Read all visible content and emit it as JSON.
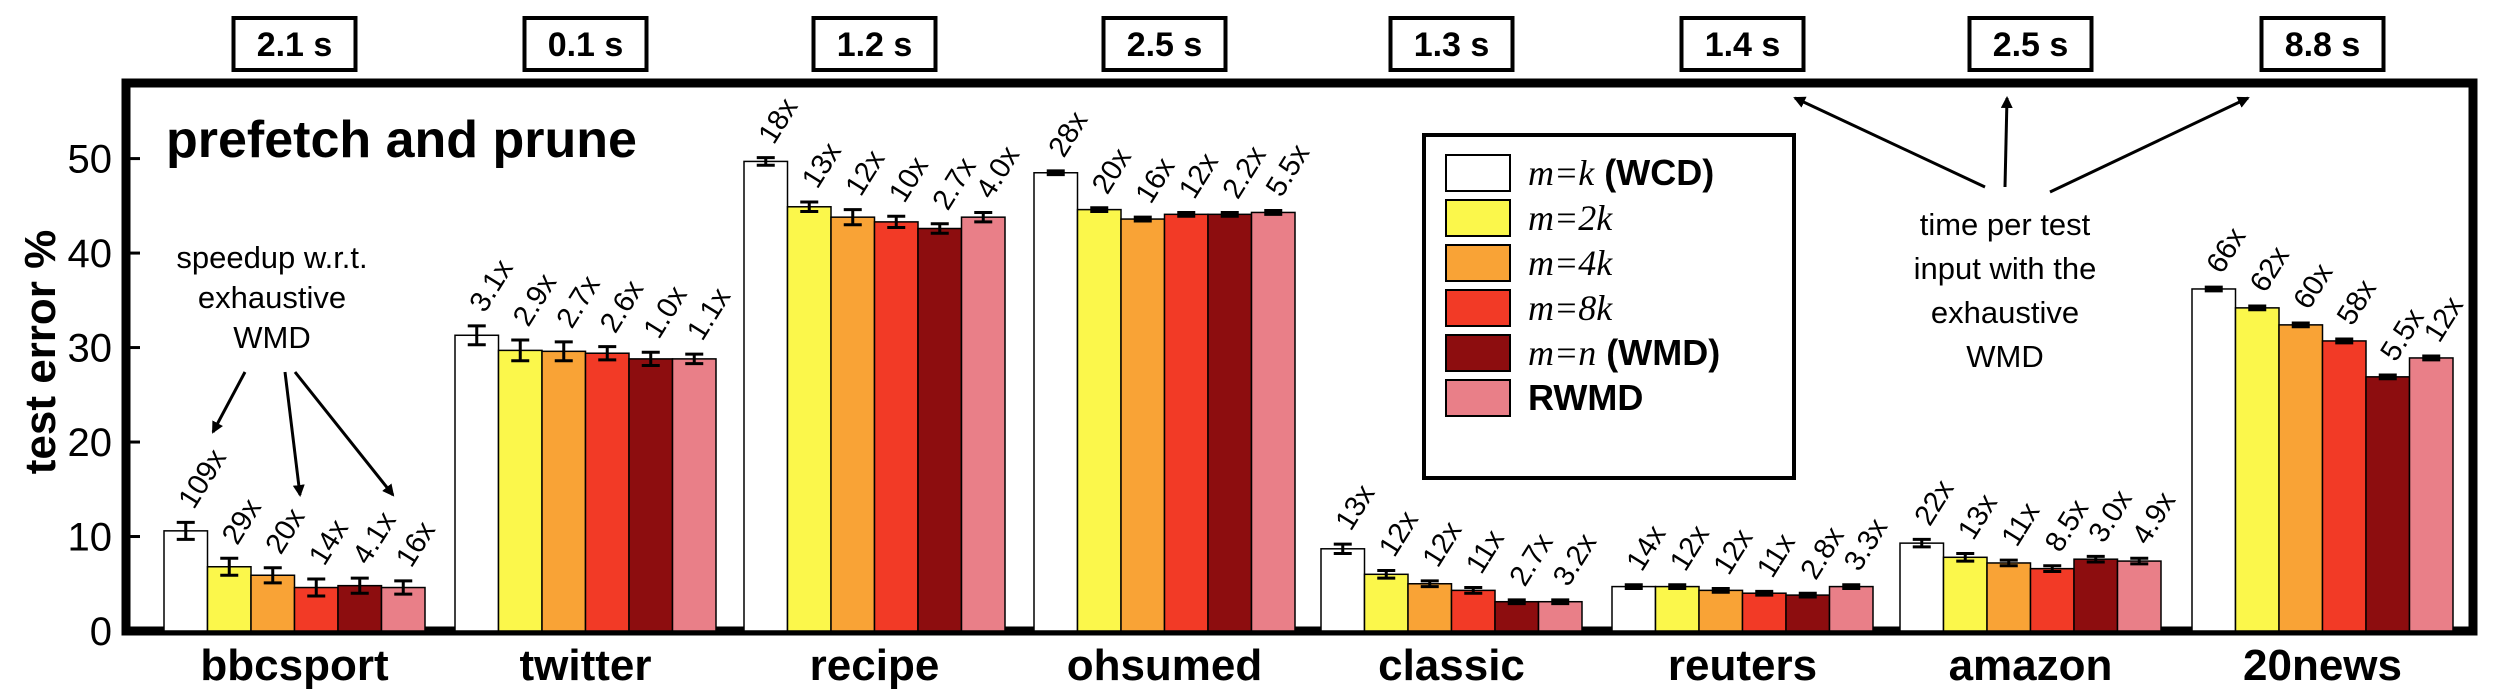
{
  "chart_data": {
    "type": "bar",
    "title": "prefetch and prune",
    "ylabel": "test error %",
    "xlabel": "",
    "ylim": [
      0,
      58
    ],
    "yticks": [
      0,
      10,
      20,
      30,
      40,
      50
    ],
    "grid": false,
    "legend_position": "top-center",
    "categories": [
      "bbcsport",
      "twitter",
      "recipe",
      "ohsumed",
      "classic",
      "reuters",
      "amazon",
      "20news"
    ],
    "time_per_test": [
      "2.1 s",
      "0.1 s",
      "1.2 s",
      "2.5 s",
      "1.3 s",
      "1.4 s",
      "2.5 s",
      "8.8 s"
    ],
    "series": [
      {
        "name_prefix": "m=k",
        "name_suffix": "(WCD)",
        "color": "#ffffff",
        "values": [
          10.6,
          31.3,
          49.7,
          48.5,
          8.7,
          4.7,
          9.3,
          36.2
        ],
        "labels": [
          "109x",
          "3.1x",
          "18x",
          "28x",
          "13x",
          "14x",
          "22x",
          "66x"
        ]
      },
      {
        "name_prefix": "m=2k",
        "name_suffix": "",
        "color": "#fbf74b",
        "values": [
          6.8,
          29.7,
          44.9,
          44.6,
          6.0,
          4.7,
          7.8,
          34.2
        ],
        "labels": [
          "29x",
          "2.9x",
          "13x",
          "20x",
          "12x",
          "12x",
          "13x",
          "62x"
        ]
      },
      {
        "name_prefix": "m=4k",
        "name_suffix": "",
        "color": "#f9a336",
        "values": [
          5.9,
          29.6,
          43.8,
          43.6,
          5.0,
          4.3,
          7.2,
          32.4
        ],
        "labels": [
          "20x",
          "2.7x",
          "12x",
          "16x",
          "12x",
          "12x",
          "11x",
          "60x"
        ]
      },
      {
        "name_prefix": "m=8k",
        "name_suffix": "",
        "color": "#f23a26",
        "values": [
          4.6,
          29.4,
          43.3,
          44.1,
          4.3,
          4.0,
          6.6,
          30.7
        ],
        "labels": [
          "14x",
          "2.6x",
          "10x",
          "12x",
          "11x",
          "11x",
          "8.5x",
          "58x"
        ]
      },
      {
        "name_prefix": "m=n",
        "name_suffix": "(WMD)",
        "color": "#8d0d0f",
        "values": [
          4.8,
          28.8,
          42.6,
          44.1,
          3.1,
          3.8,
          7.6,
          26.9
        ],
        "labels": [
          "4.1x",
          "1.0x",
          "2.7x",
          "2.2x",
          "2.7x",
          "2.8x",
          "3.0x",
          "5.5x"
        ]
      },
      {
        "name_prefix": "RWMD",
        "name_suffix": "",
        "color": "#e97f88",
        "values": [
          4.6,
          28.8,
          43.8,
          44.3,
          3.1,
          4.7,
          7.4,
          28.9
        ],
        "labels": [
          "16x",
          "1.1x",
          "4.0x",
          "5.5x",
          "3.2x",
          "3.3x",
          "4.9x",
          "12x"
        ]
      }
    ],
    "errors": [
      [
        0.9,
        1.0,
        0.4,
        0.2,
        0.5,
        0.2,
        0.4,
        0.2
      ],
      [
        0.9,
        1.1,
        0.5,
        0.2,
        0.4,
        0.2,
        0.4,
        0.2
      ],
      [
        0.8,
        1.0,
        0.8,
        0.2,
        0.3,
        0.2,
        0.3,
        0.2
      ],
      [
        0.9,
        0.7,
        0.6,
        0.2,
        0.3,
        0.2,
        0.3,
        0.2
      ],
      [
        0.8,
        0.7,
        0.5,
        0.2,
        0.2,
        0.2,
        0.3,
        0.2
      ],
      [
        0.7,
        0.5,
        0.5,
        0.2,
        0.2,
        0.2,
        0.3,
        0.2
      ]
    ],
    "annotations": {
      "speedup_note": [
        "speedup w.r.t.",
        "exhaustive",
        "WMD"
      ],
      "time_note": [
        "time per test",
        "input with the",
        "exhaustive",
        "WMD"
      ]
    }
  }
}
